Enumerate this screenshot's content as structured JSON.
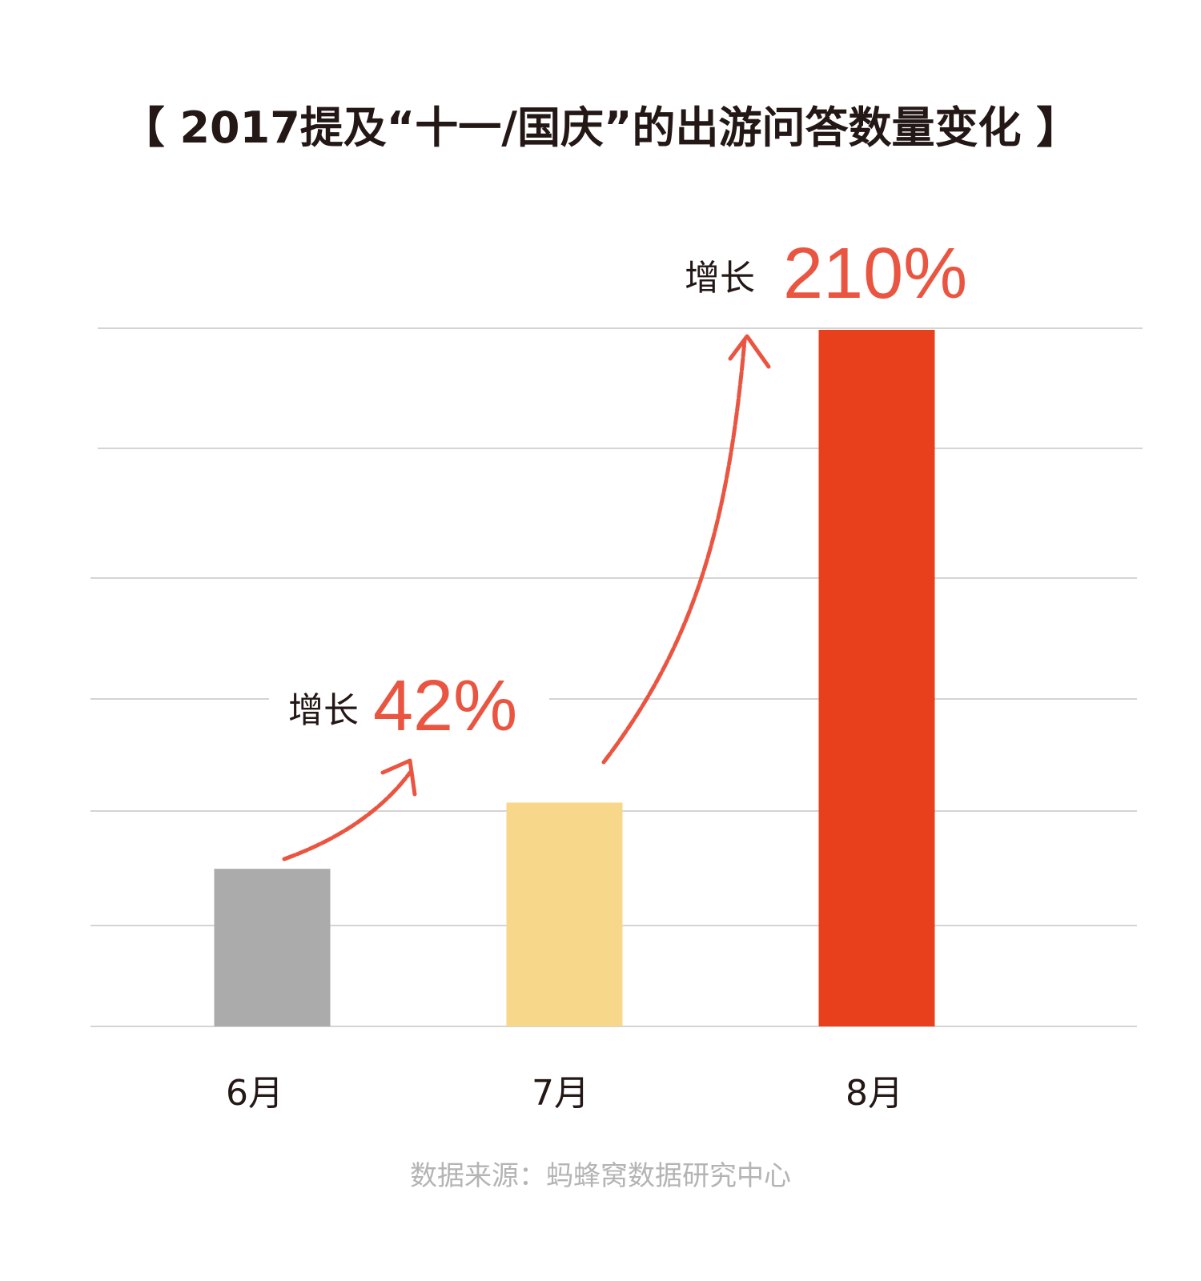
{
  "chart_data": {
    "type": "bar",
    "title": "【 2017提及“十一/国庆”的出游问答数量变化 】",
    "categories": [
      "6月",
      "7月",
      "8月"
    ],
    "values": [
      1.0,
      1.42,
      4.42
    ],
    "ylim": [
      0,
      4.42
    ],
    "grid": true,
    "legend": "none",
    "bar_colors": [
      "#ababab",
      "#f7d78a",
      "#e8401c"
    ],
    "annotations": [
      {
        "from": "6月",
        "to": "7月",
        "label": "增长",
        "value": "42%"
      },
      {
        "from": "7月",
        "to": "8月",
        "label": "增长",
        "value": "210%"
      }
    ],
    "source": "数据来源：蚂蜂窝数据研究中心"
  },
  "colors": {
    "arrow": "#ea5541",
    "grid": "#d4d4d4",
    "text": "#231815",
    "source": "#b4b4b4"
  }
}
